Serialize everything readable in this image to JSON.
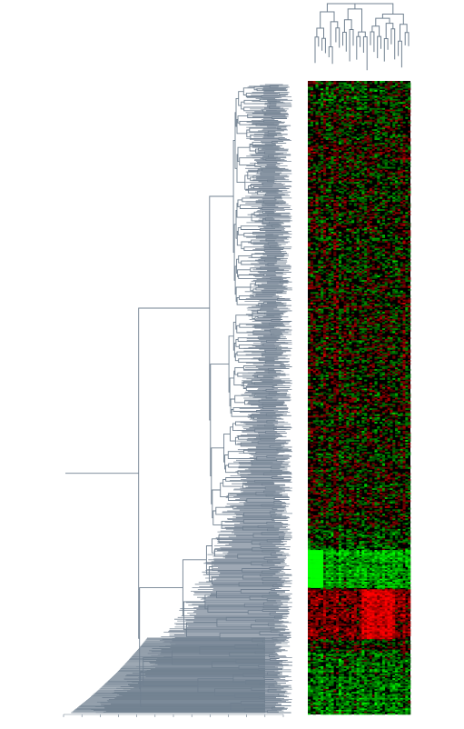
{
  "chart_data": {
    "type": "heatmap",
    "description_of_encoding": "",
    "row_dendrogram": {
      "position": "left",
      "orientation": "leaves-right",
      "color": "#708090"
    },
    "column_dendrogram": {
      "position": "top",
      "orientation": "leaves-down",
      "color": "#708090"
    },
    "heatmap": {
      "palette": [
        "#00ff00",
        "#000000",
        "#ff0000"
      ],
      "palette_meaning": [
        "low",
        "zero",
        "high"
      ],
      "columns": 40,
      "rows": 420
    },
    "axis_ticks": {
      "visible": true,
      "labels": []
    },
    "colors": {
      "dendrogram": "#708090",
      "background": "#ffffff",
      "low": "#00ff00",
      "mid": "#000000",
      "high": "#ff0000"
    }
  }
}
